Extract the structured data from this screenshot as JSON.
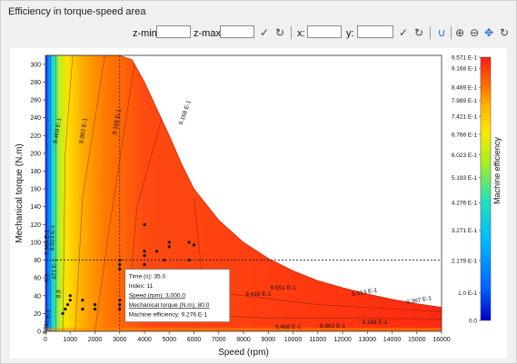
{
  "panel": {
    "title": "Efficiency in torque-speed area"
  },
  "toolbar": {
    "zmin_label": "z-min:",
    "zmax_label": "z-max:",
    "x_label": "x:",
    "y_label": "y:",
    "zmin_value": "",
    "zmax_value": "",
    "x_value": "",
    "y_value": ""
  },
  "icons": {
    "apply": "checkmark-icon",
    "reset": "reset-icon",
    "magnet": "magnet-icon",
    "zoom_in": "zoom-in-icon",
    "zoom_out": "zoom-out-icon",
    "pan": "pan-icon",
    "refresh": "refresh-icon"
  },
  "tooltip": {
    "time": "Time (s): 35.0",
    "index": "Index: 11",
    "speed": "Speed (rpm): 3,000.0",
    "torque": "Mechanical torque (N.m): 80.0",
    "efficiency": "Machine efficiency: 9.276 E-1"
  },
  "chart_data": {
    "type": "heatmap",
    "title": "",
    "xlabel": "Speed (rpm)",
    "ylabel": "Mechanical torque (N.m)",
    "colorbar_label": "Machine efficiency",
    "xlim": [
      0,
      16000
    ],
    "ylim": [
      0,
      310
    ],
    "x_ticks": [
      0,
      1000,
      2000,
      3000,
      4000,
      5000,
      6000,
      7000,
      8000,
      9000,
      10000,
      11000,
      12000,
      13000,
      14000,
      15000,
      16000
    ],
    "y_ticks": [
      0,
      20,
      40,
      60,
      80,
      100,
      120,
      140,
      160,
      180,
      200,
      220,
      240,
      260,
      280,
      300
    ],
    "grid": false,
    "envelope": {
      "speed": [
        0,
        2000,
        3000,
        3500,
        4000,
        4500,
        5000,
        5500,
        6000,
        7000,
        8000,
        9000,
        10000,
        11000,
        12000,
        13000,
        14000,
        15000,
        16000
      ],
      "torque": [
        310,
        310,
        310,
        305,
        280,
        250,
        220,
        188,
        160,
        125,
        100,
        82,
        68,
        57,
        49,
        42,
        36,
        31,
        27
      ]
    },
    "colorbar_ticks": [
      {
        "value": 0.0,
        "label": "0.0"
      },
      {
        "value": 0.1,
        "label": "1.0 E-1"
      },
      {
        "value": 0.2179,
        "label": "2.179 E-1"
      },
      {
        "value": 0.3271,
        "label": "3.271 E-1"
      },
      {
        "value": 0.4276,
        "label": "4.276 E-1"
      },
      {
        "value": 0.5193,
        "label": "5.193 E-1"
      },
      {
        "value": 0.6023,
        "label": "6.023 E-1"
      },
      {
        "value": 0.6766,
        "label": "6.766 E-1"
      },
      {
        "value": 0.7421,
        "label": "7.421 E-1"
      },
      {
        "value": 0.7989,
        "label": "7.989 E-1"
      },
      {
        "value": 0.8469,
        "label": "8.469 E-1"
      },
      {
        "value": 0.9168,
        "label": "9.168 E-1"
      },
      {
        "value": 0.9571,
        "label": "9.571 E-1"
      }
    ],
    "contour_labels": [
      {
        "speed": 550,
        "torque": 225,
        "text": "8.469 E-1",
        "rotate": -80
      },
      {
        "speed": 1600,
        "torque": 225,
        "text": "8.862 E-1",
        "rotate": -80
      },
      {
        "speed": 2950,
        "torque": 235,
        "text": "9.168 E-1",
        "rotate": -80
      },
      {
        "speed": 5700,
        "torque": 245,
        "text": "9.168 E-1",
        "rotate": -70
      },
      {
        "speed": 130,
        "torque": 100,
        "text": "7.989 E-1",
        "rotate": -90
      },
      {
        "speed": 350,
        "torque": 105,
        "text": "8.623 E-1",
        "rotate": -90
      },
      {
        "speed": 120,
        "torque": 60,
        "text": "6.0",
        "rotate": -90
      },
      {
        "speed": 430,
        "torque": 70,
        "text": "421 E-1",
        "rotate": -90
      },
      {
        "speed": 600,
        "torque": 42,
        "text": "8.8",
        "rotate": -90
      },
      {
        "speed": 130,
        "torque": 10,
        "text": "3.991 E-1",
        "rotate": -80
      },
      {
        "speed": 6600,
        "torque": 13,
        "text": "967 E-1",
        "rotate": 0
      },
      {
        "speed": 8600,
        "torque": 40,
        "text": "9.416 E-1",
        "rotate": 0
      },
      {
        "speed": 9600,
        "torque": 47,
        "text": "9.551 E-1",
        "rotate": 0
      },
      {
        "speed": 12900,
        "torque": 42,
        "text": "9.513 E-1",
        "rotate": -10
      },
      {
        "speed": 15100,
        "torque": 33,
        "text": "9.367 E-1",
        "rotate": -10
      },
      {
        "speed": 9800,
        "torque": 3,
        "text": "9.468 E-1",
        "rotate": 0
      },
      {
        "speed": 11600,
        "torque": 4,
        "text": "8.862 E-1",
        "rotate": 0
      },
      {
        "speed": 13300,
        "torque": 8,
        "text": "9.168 E-1",
        "rotate": 0
      }
    ],
    "points": [
      {
        "speed": 3000,
        "torque": 80
      },
      {
        "speed": 3000,
        "torque": 75
      },
      {
        "speed": 3000,
        "torque": 70
      },
      {
        "speed": 3000,
        "torque": 35
      },
      {
        "speed": 3000,
        "torque": 30
      },
      {
        "speed": 3000,
        "torque": 25
      },
      {
        "speed": 3500,
        "torque": 62
      },
      {
        "speed": 3500,
        "torque": 50
      },
      {
        "speed": 3500,
        "torque": 35
      },
      {
        "speed": 3500,
        "torque": 20
      },
      {
        "speed": 4000,
        "torque": 120
      },
      {
        "speed": 4000,
        "torque": 90
      },
      {
        "speed": 4000,
        "torque": 85
      },
      {
        "speed": 4000,
        "torque": 75
      },
      {
        "speed": 4500,
        "torque": 90
      },
      {
        "speed": 4800,
        "torque": 80
      },
      {
        "speed": 5000,
        "torque": 100
      },
      {
        "speed": 5000,
        "torque": 95
      },
      {
        "speed": 5500,
        "torque": 65
      },
      {
        "speed": 5800,
        "torque": 100
      },
      {
        "speed": 6000,
        "torque": 97
      },
      {
        "speed": 5800,
        "torque": 80
      },
      {
        "speed": 1000,
        "torque": 40
      },
      {
        "speed": 1000,
        "torque": 35
      },
      {
        "speed": 900,
        "torque": 30
      },
      {
        "speed": 1500,
        "torque": 35
      },
      {
        "speed": 2000,
        "torque": 30
      },
      {
        "speed": 2000,
        "torque": 25
      },
      {
        "speed": 1500,
        "torque": 25
      },
      {
        "speed": 700,
        "torque": 20
      },
      {
        "speed": 800,
        "torque": 25
      }
    ],
    "crosshair": {
      "speed": 3000,
      "torque": 80
    }
  }
}
